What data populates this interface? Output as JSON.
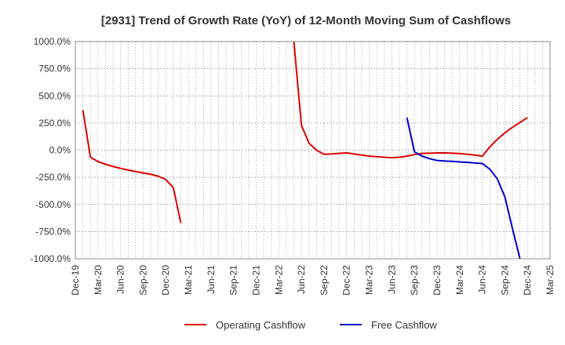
{
  "chart_data": {
    "type": "line",
    "title": "[2931]  Trend of Growth Rate (YoY) of 12-Month Moving Sum of Cashflows",
    "xlabel": "",
    "ylabel": "",
    "ylim": [
      -1000,
      1000
    ],
    "y_ticks": [
      1000,
      750,
      500,
      250,
      0,
      -250,
      -500,
      -750,
      -1000
    ],
    "y_tick_labels": [
      "1000.0%",
      "750.0%",
      "500.0%",
      "250.0%",
      "0.0%",
      "-250.0%",
      "-500.0%",
      "-750.0%",
      "-1000.0%"
    ],
    "x_tick_labels": [
      "Dec-19",
      "Mar-20",
      "Jun-20",
      "Sep-20",
      "Dec-20",
      "Mar-21",
      "Jun-21",
      "Sep-21",
      "Dec-21",
      "Mar-22",
      "Jun-22",
      "Sep-22",
      "Dec-22",
      "Mar-23",
      "Jun-23",
      "Sep-23",
      "Dec-23",
      "Mar-24",
      "Jun-24",
      "Sep-24",
      "Dec-24",
      "Mar-25"
    ],
    "x_months": [
      "2019-12",
      "2020-01",
      "2020-02",
      "2020-03",
      "2020-04",
      "2020-05",
      "2020-06",
      "2020-07",
      "2020-08",
      "2020-09",
      "2020-10",
      "2020-11",
      "2020-12",
      "2021-01",
      "2021-02",
      "2021-03",
      "2021-04",
      "2021-05",
      "2021-06",
      "2021-07",
      "2021-08",
      "2021-09",
      "2021-10",
      "2021-11",
      "2021-12",
      "2022-01",
      "2022-02",
      "2022-03",
      "2022-04",
      "2022-05",
      "2022-06",
      "2022-07",
      "2022-08",
      "2022-09",
      "2022-10",
      "2022-11",
      "2022-12",
      "2023-01",
      "2023-02",
      "2023-03",
      "2023-04",
      "2023-05",
      "2023-06",
      "2023-07",
      "2023-08",
      "2023-09",
      "2023-10",
      "2023-11",
      "2023-12",
      "2024-01",
      "2024-02",
      "2024-03",
      "2024-04",
      "2024-05",
      "2024-06",
      "2024-07",
      "2024-08",
      "2024-09",
      "2024-10",
      "2024-11",
      "2024-12",
      "2025-01",
      "2025-02",
      "2025-03"
    ],
    "grid": true,
    "legend_position": "bottom-center",
    "series": [
      {
        "name": "Operating Cashflow",
        "color": "#e00000",
        "segments": [
          [
            [
              "2020-01",
              370
            ],
            [
              "2020-02",
              -65
            ],
            [
              "2020-03",
              -105
            ],
            [
              "2020-04",
              -130
            ],
            [
              "2020-05",
              -150
            ],
            [
              "2020-06",
              -168
            ],
            [
              "2020-07",
              -183
            ],
            [
              "2020-08",
              -197
            ],
            [
              "2020-09",
              -210
            ],
            [
              "2020-10",
              -222
            ],
            [
              "2020-11",
              -240
            ],
            [
              "2020-12",
              -270
            ],
            [
              "2021-01",
              -345
            ],
            [
              "2021-02",
              -670
            ]
          ],
          [
            [
              "2022-05",
              1000
            ],
            [
              "2022-06",
              230
            ],
            [
              "2022-07",
              65
            ],
            [
              "2022-08",
              0
            ],
            [
              "2022-09",
              -38
            ],
            [
              "2022-10",
              -35
            ],
            [
              "2022-11",
              -30
            ],
            [
              "2022-12",
              -25
            ],
            [
              "2023-01",
              -35
            ],
            [
              "2023-02",
              -45
            ],
            [
              "2023-03",
              -55
            ],
            [
              "2023-04",
              -60
            ],
            [
              "2023-05",
              -65
            ],
            [
              "2023-06",
              -70
            ],
            [
              "2023-07",
              -65
            ],
            [
              "2023-08",
              -55
            ],
            [
              "2023-09",
              -40
            ],
            [
              "2023-10",
              -30
            ],
            [
              "2023-11",
              -28
            ],
            [
              "2023-12",
              -25
            ],
            [
              "2024-01",
              -25
            ],
            [
              "2024-02",
              -28
            ],
            [
              "2024-03",
              -32
            ],
            [
              "2024-04",
              -38
            ],
            [
              "2024-05",
              -45
            ],
            [
              "2024-06",
              -55
            ],
            [
              "2024-07",
              30
            ],
            [
              "2024-08",
              100
            ],
            [
              "2024-09",
              160
            ],
            [
              "2024-10",
              210
            ],
            [
              "2024-11",
              255
            ],
            [
              "2024-12",
              300
            ]
          ]
        ]
      },
      {
        "name": "Free Cashflow",
        "color": "#0000cc",
        "segments": [
          [
            [
              "2023-08",
              300
            ],
            [
              "2023-09",
              -15
            ],
            [
              "2023-10",
              -55
            ],
            [
              "2023-11",
              -78
            ],
            [
              "2023-12",
              -95
            ],
            [
              "2024-01",
              -100
            ],
            [
              "2024-02",
              -103
            ],
            [
              "2024-03",
              -108
            ],
            [
              "2024-04",
              -112
            ],
            [
              "2024-05",
              -118
            ],
            [
              "2024-06",
              -123
            ],
            [
              "2024-07",
              -175
            ],
            [
              "2024-08",
              -265
            ],
            [
              "2024-09",
              -430
            ],
            [
              "2024-10",
              -720
            ],
            [
              "2024-11",
              -1000
            ]
          ]
        ]
      }
    ]
  }
}
